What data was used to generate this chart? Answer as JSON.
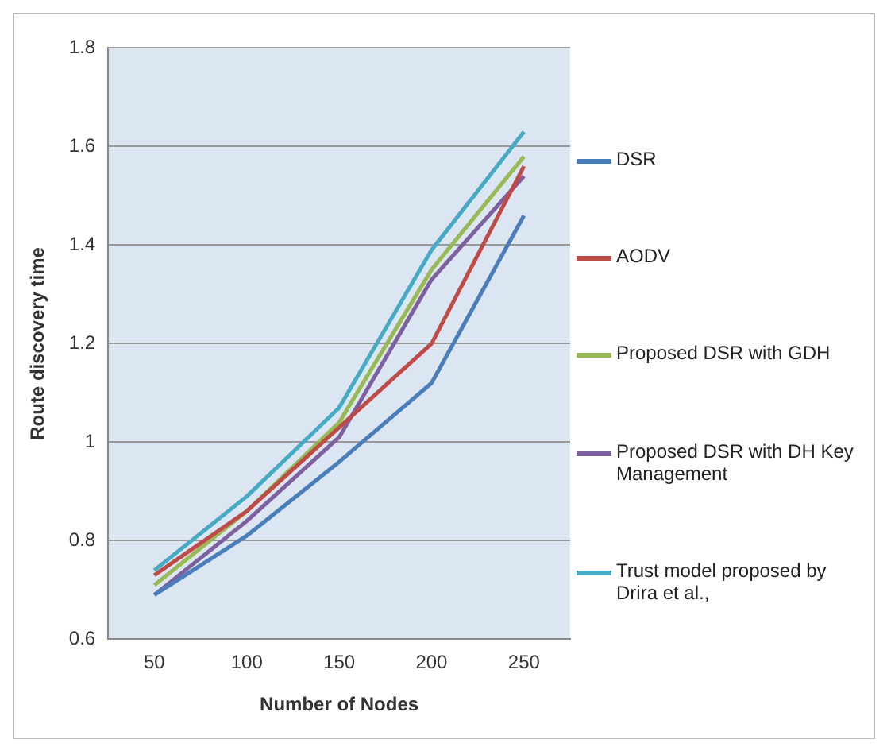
{
  "chart_data": {
    "type": "line",
    "xlabel": "Number of Nodes",
    "ylabel": "Route discovery time",
    "categories": [
      "50",
      "100",
      "150",
      "200",
      "250"
    ],
    "series": [
      {
        "name": "DSR",
        "color": "#4a7ebb",
        "values": [
          0.69,
          0.81,
          0.96,
          1.12,
          1.46
        ]
      },
      {
        "name": "AODV",
        "color": "#be4b48",
        "values": [
          0.73,
          0.86,
          1.03,
          1.2,
          1.56
        ]
      },
      {
        "name": "Proposed DSR with GDH",
        "color": "#98b954",
        "values": [
          0.71,
          0.86,
          1.04,
          1.35,
          1.58
        ]
      },
      {
        "name": "Proposed DSR with DH Key Management",
        "color": "#7d60a0",
        "values": [
          0.69,
          0.84,
          1.01,
          1.33,
          1.54
        ]
      },
      {
        "name": "Trust model proposed by Drira et al.,",
        "color": "#46aac5",
        "values": [
          0.74,
          0.89,
          1.07,
          1.39,
          1.63
        ]
      }
    ],
    "ylim": [
      0.6,
      1.8
    ],
    "yticks": [
      0.6,
      0.8,
      1,
      1.2,
      1.4,
      1.6,
      1.8
    ],
    "grid": "y",
    "legend": "right",
    "marker": "none",
    "line_style": "solid"
  }
}
